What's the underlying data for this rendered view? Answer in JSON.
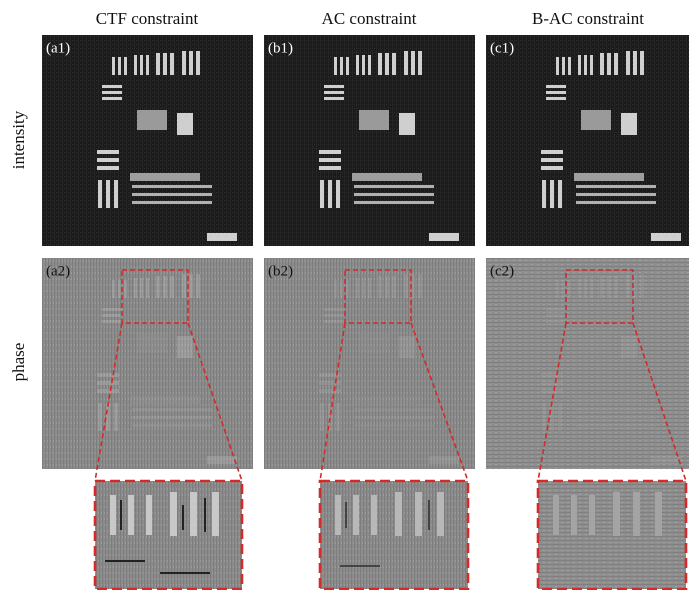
{
  "column_headers": [
    "CTF constraint",
    "AC constraint",
    "B-AC constraint"
  ],
  "row_labels": [
    "intensity",
    "phase"
  ],
  "panels": [
    [
      "(a1)",
      "(b1)",
      "(c1)"
    ],
    [
      "(a2)",
      "(b2)",
      "(c2)"
    ]
  ]
}
